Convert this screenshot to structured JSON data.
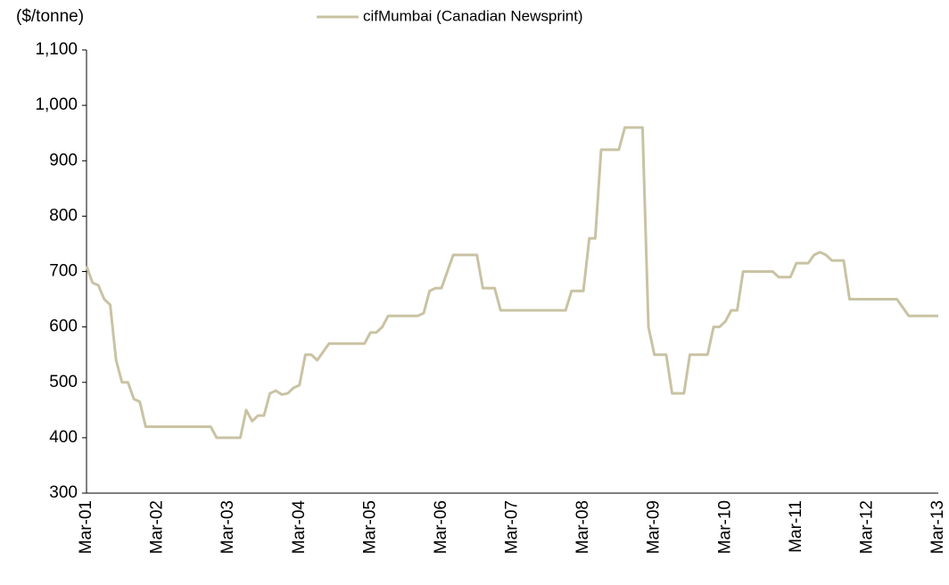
{
  "chart_data": {
    "type": "line",
    "y_label": "($/tonne)",
    "categories": [
      "Mar-01",
      null,
      null,
      null,
      null,
      null,
      null,
      null,
      null,
      null,
      null,
      null,
      "Mar-02",
      null,
      null,
      null,
      null,
      null,
      null,
      null,
      null,
      null,
      null,
      null,
      "Mar-03",
      null,
      null,
      null,
      null,
      null,
      null,
      null,
      null,
      null,
      null,
      null,
      "Mar-04",
      null,
      null,
      null,
      null,
      null,
      null,
      null,
      null,
      null,
      null,
      null,
      "Mar-05",
      null,
      null,
      null,
      null,
      null,
      null,
      null,
      null,
      null,
      null,
      null,
      "Mar-06",
      null,
      null,
      null,
      null,
      null,
      null,
      null,
      null,
      null,
      null,
      null,
      "Mar-07",
      null,
      null,
      null,
      null,
      null,
      null,
      null,
      null,
      null,
      null,
      null,
      "Mar-08",
      null,
      null,
      null,
      null,
      null,
      null,
      null,
      null,
      null,
      null,
      null,
      "Mar-09",
      null,
      null,
      null,
      null,
      null,
      null,
      null,
      null,
      null,
      null,
      null,
      "Mar-10",
      null,
      null,
      null,
      null,
      null,
      null,
      null,
      null,
      null,
      null,
      null,
      "Mar-11",
      null,
      null,
      null,
      null,
      null,
      null,
      null,
      null,
      null,
      null,
      null,
      "Mar-12",
      null,
      null,
      null,
      null,
      null,
      null,
      null,
      null,
      null,
      null,
      null,
      "Mar-13"
    ],
    "series": [
      {
        "name": "cifMumbai (Canadian Newsprint)",
        "color": "#c9c3a4",
        "values": [
          710,
          680,
          675,
          650,
          640,
          540,
          500,
          500,
          470,
          465,
          420,
          420,
          420,
          420,
          420,
          420,
          420,
          420,
          420,
          420,
          420,
          420,
          400,
          400,
          400,
          400,
          400,
          450,
          430,
          440,
          440,
          480,
          485,
          478,
          480,
          490,
          495,
          550,
          550,
          540,
          555,
          570,
          570,
          570,
          570,
          570,
          570,
          570,
          590,
          590,
          600,
          620,
          620,
          620,
          620,
          620,
          620,
          625,
          665,
          670,
          670,
          700,
          730,
          730,
          730,
          730,
          730,
          670,
          670,
          670,
          630,
          630,
          630,
          630,
          630,
          630,
          630,
          630,
          630,
          630,
          630,
          630,
          665,
          665,
          665,
          760,
          760,
          920,
          920,
          920,
          920,
          960,
          960,
          960,
          960,
          600,
          550,
          550,
          550,
          480,
          480,
          480,
          550,
          550,
          550,
          550,
          600,
          600,
          610,
          630,
          630,
          700,
          700,
          700,
          700,
          700,
          700,
          690,
          690,
          690,
          715,
          715,
          715,
          730,
          735,
          730,
          720,
          720,
          720,
          650,
          650,
          650,
          650,
          650,
          650,
          650,
          650,
          650,
          635,
          620,
          620,
          620,
          620,
          620,
          620
        ]
      }
    ],
    "ylim": [
      300,
      1100
    ],
    "yticks": [
      {
        "value": 1100,
        "label": "1,100"
      },
      {
        "value": 1000,
        "label": "1,000"
      },
      900,
      800,
      700,
      600,
      500,
      400,
      300
    ],
    "legend": "top"
  }
}
